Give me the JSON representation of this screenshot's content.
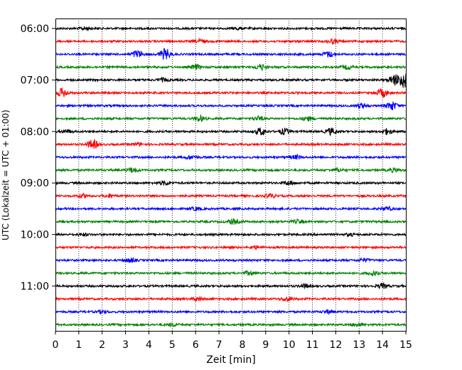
{
  "chart_data": {
    "type": "line",
    "title": "",
    "xlabel": "Zeit  [min]",
    "ylabel": "UTC (Lokalzeit = UTC + 01:00)",
    "xlim": [
      0,
      15
    ],
    "x_ticks": [
      0,
      1,
      2,
      3,
      4,
      5,
      6,
      7,
      8,
      9,
      10,
      11,
      12,
      13,
      14,
      15
    ],
    "x_tick_labels": [
      "0",
      "1",
      "2",
      "3",
      "4",
      "5",
      "6",
      "7",
      "8",
      "9",
      "10",
      "11",
      "12",
      "13",
      "14",
      "15"
    ],
    "y_tick_labels": [
      "06:00",
      "07:00",
      "08:00",
      "09:00",
      "10:00",
      "11:00"
    ],
    "grid": "vertical dotted",
    "trace_minutes": 15,
    "trace_colors": [
      "#000000",
      "#ff0000",
      "#0000ff",
      "#008000"
    ],
    "traces": [
      {
        "start": "06:00",
        "color": "black",
        "events": [
          [
            1.3,
            0.6
          ],
          [
            7.8,
            0.5
          ]
        ]
      },
      {
        "start": "06:15",
        "color": "red",
        "events": [
          [
            6.2,
            0.8
          ],
          [
            11.9,
            0.9
          ]
        ]
      },
      {
        "start": "06:30",
        "color": "blue",
        "events": [
          [
            3.5,
            1.6
          ],
          [
            4.7,
            2.4
          ],
          [
            11.7,
            1.2
          ]
        ]
      },
      {
        "start": "06:45",
        "color": "green",
        "events": [
          [
            6.0,
            1.0
          ],
          [
            8.8,
            1.2
          ],
          [
            12.5,
            0.8
          ]
        ]
      },
      {
        "start": "07:00",
        "color": "black",
        "events": [
          [
            4.6,
            0.7
          ],
          [
            14.5,
            2.2
          ],
          [
            14.9,
            3.5
          ]
        ]
      },
      {
        "start": "07:15",
        "color": "red",
        "events": [
          [
            0.3,
            2.0
          ],
          [
            14.0,
            1.8
          ]
        ]
      },
      {
        "start": "07:30",
        "color": "blue",
        "events": [
          [
            13.1,
            1.0
          ],
          [
            14.4,
            1.9
          ]
        ]
      },
      {
        "start": "07:45",
        "color": "green",
        "events": [
          [
            6.2,
            1.2
          ],
          [
            8.7,
            0.9
          ],
          [
            10.8,
            0.9
          ]
        ]
      },
      {
        "start": "08:00",
        "color": "black",
        "events": [
          [
            0.5,
            0.7
          ],
          [
            8.8,
            1.6
          ],
          [
            9.8,
            1.3
          ],
          [
            11.8,
            1.4
          ],
          [
            14.2,
            1.2
          ]
        ]
      },
      {
        "start": "08:15",
        "color": "red",
        "events": [
          [
            1.6,
            2.0
          ],
          [
            3.5,
            0.6
          ]
        ]
      },
      {
        "start": "08:30",
        "color": "blue",
        "events": [
          [
            5.8,
            0.8
          ],
          [
            10.3,
            0.8
          ]
        ]
      },
      {
        "start": "08:45",
        "color": "green",
        "events": [
          [
            3.3,
            1.0
          ],
          [
            12.1,
            0.7
          ],
          [
            14.5,
            0.8
          ]
        ]
      },
      {
        "start": "09:00",
        "color": "black",
        "events": [
          [
            4.7,
            0.8
          ],
          [
            10.0,
            0.9
          ]
        ]
      },
      {
        "start": "09:15",
        "color": "red",
        "events": [
          [
            1.2,
            0.7
          ],
          [
            2.3,
            0.7
          ],
          [
            9.2,
            0.9
          ]
        ]
      },
      {
        "start": "09:30",
        "color": "blue",
        "events": [
          [
            6.0,
            0.7
          ],
          [
            14.2,
            0.8
          ]
        ]
      },
      {
        "start": "09:45",
        "color": "green",
        "events": [
          [
            7.6,
            1.1
          ],
          [
            10.4,
            0.8
          ]
        ]
      },
      {
        "start": "10:00",
        "color": "black",
        "events": [
          [
            1.2,
            0.5
          ],
          [
            12.6,
            0.5
          ]
        ]
      },
      {
        "start": "10:15",
        "color": "red",
        "events": [
          [
            8.6,
            0.6
          ]
        ]
      },
      {
        "start": "10:30",
        "color": "blue",
        "events": [
          [
            3.2,
            0.9
          ],
          [
            13.2,
            0.7
          ]
        ]
      },
      {
        "start": "10:45",
        "color": "green",
        "events": [
          [
            8.3,
            0.8
          ],
          [
            13.6,
            0.9
          ]
        ]
      },
      {
        "start": "11:00",
        "color": "black",
        "events": [
          [
            10.7,
            0.8
          ],
          [
            14.0,
            1.0
          ]
        ]
      },
      {
        "start": "11:15",
        "color": "red",
        "events": [
          [
            6.1,
            0.8
          ],
          [
            9.9,
            0.9
          ]
        ]
      },
      {
        "start": "11:30",
        "color": "blue",
        "events": [
          [
            2.0,
            0.6
          ],
          [
            11.7,
            0.8
          ]
        ]
      },
      {
        "start": "11:45",
        "color": "green",
        "events": [
          [
            5.0,
            0.6
          ],
          [
            12.9,
            0.6
          ]
        ]
      }
    ]
  }
}
